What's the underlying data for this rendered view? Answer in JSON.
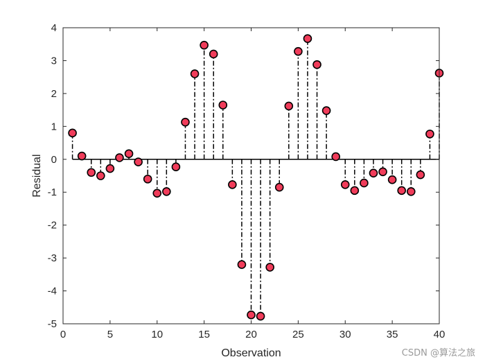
{
  "chart_data": {
    "type": "scatter",
    "style": "stem",
    "xlabel": "Observation",
    "ylabel": "Residual",
    "xlim": [
      0,
      40
    ],
    "ylim": [
      -5,
      4
    ],
    "xticks": [
      0,
      5,
      10,
      15,
      20,
      25,
      30,
      35,
      40
    ],
    "yticks": [
      -5,
      -4,
      -3,
      -2,
      -1,
      0,
      1,
      2,
      3,
      4
    ],
    "grid": false,
    "marker_color": "#f03c5a",
    "stem_color": "#000000",
    "x": [
      1,
      2,
      3,
      4,
      5,
      6,
      7,
      8,
      9,
      10,
      11,
      12,
      13,
      14,
      15,
      16,
      17,
      18,
      19,
      20,
      21,
      22,
      23,
      24,
      25,
      26,
      27,
      28,
      29,
      30,
      31,
      32,
      33,
      34,
      35,
      36,
      37,
      38,
      39,
      40
    ],
    "values": [
      0.8,
      0.1,
      -0.4,
      -0.5,
      -0.28,
      0.05,
      0.17,
      -0.08,
      -0.6,
      -1.03,
      -0.98,
      -0.23,
      1.13,
      2.6,
      3.47,
      3.2,
      1.65,
      -0.77,
      -3.2,
      -4.73,
      -4.77,
      -3.28,
      -0.85,
      1.62,
      3.28,
      3.67,
      2.88,
      1.48,
      0.08,
      -0.77,
      -0.95,
      -0.72,
      -0.42,
      -0.38,
      -0.62,
      -0.95,
      -0.98,
      -0.47,
      0.77,
      2.62
    ]
  },
  "watermark": "CSDN @算法之旅"
}
